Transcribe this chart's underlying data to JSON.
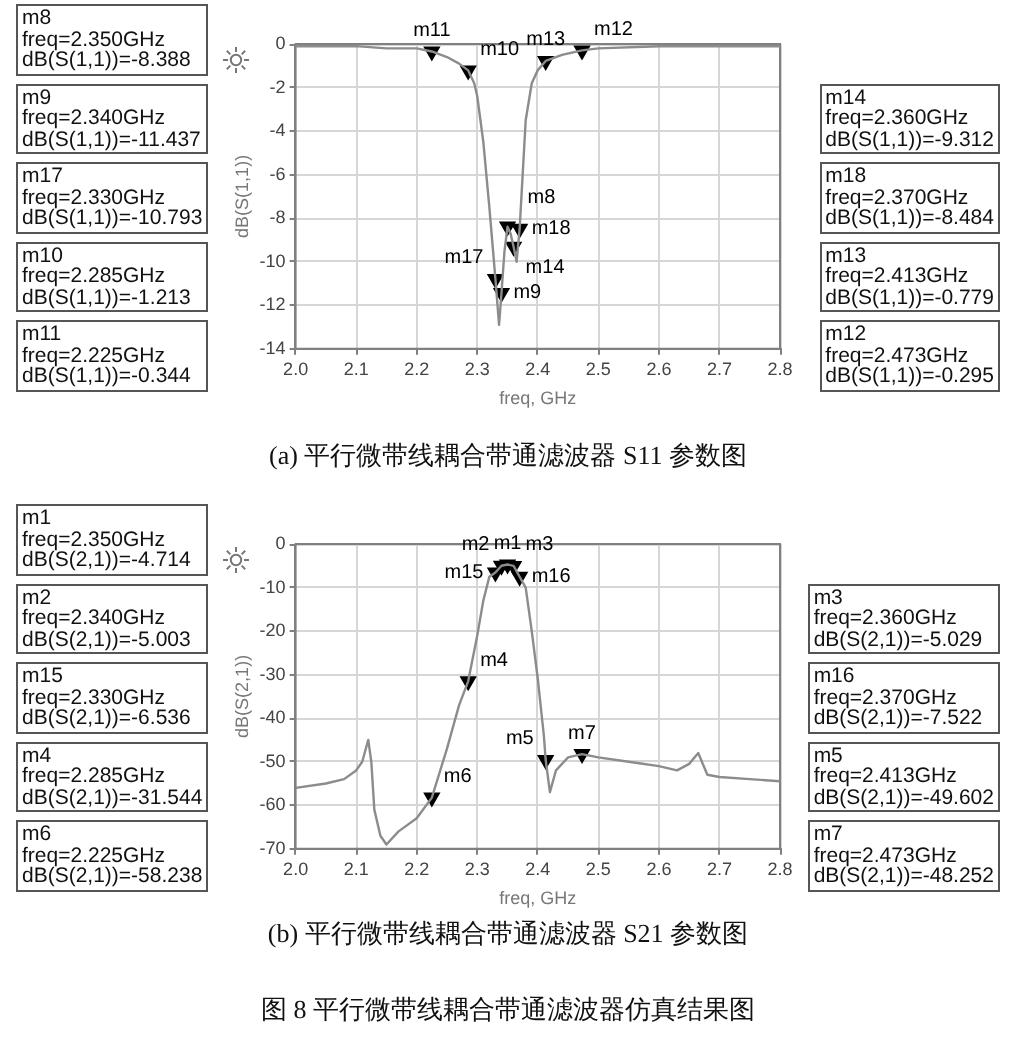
{
  "chart_data": [
    {
      "type": "line",
      "title": "(a) 平行微带线耦合带通滤波器 S11 参数图",
      "xlabel": "freq, GHz",
      "ylabel": "dB(S(1,1))",
      "xlim": [
        2.0,
        2.8
      ],
      "xticks": [
        {
          "value": 2,
          "label": "2.0"
        },
        2.1,
        2.2,
        2.3,
        2.4,
        2.5,
        2.6,
        2.7,
        2.8
      ],
      "ylim": [
        -14,
        0
      ],
      "yticks": [
        -14,
        -12,
        -10,
        -8,
        -6,
        -4,
        -2,
        0
      ],
      "grid": true,
      "annotations": [
        "m8\nfreq=2.350GHz\ndB(S(1,1))=-8.388",
        "m9\nfreq=2.340GHz\ndB(S(1,1))=-11.437",
        "m17\nfreq=2.330GHz\ndB(S(1,1))=-10.793",
        "m10\nfreq=2.285GHz\ndB(S(1,1))=-1.213",
        "m11\nfreq=2.225GHz\ndB(S(1,1))=-0.344",
        "m14\nfreq=2.360GHz\ndB(S(1,1))=-9.312",
        "m18\nfreq=2.370GHz\ndB(S(1,1))=-8.484",
        "m13\nfreq=2.413GHz\ndB(S(1,1))=-0.779",
        "m12\nfreq=2.473GHz\ndB(S(1,1))=-0.295"
      ],
      "series": [
        {
          "type": "line",
          "color": "#8c8c8c",
          "marker": "none",
          "x": [
            2.0,
            2.1,
            2.15,
            2.2,
            2.225,
            2.25,
            2.27,
            2.285,
            2.295,
            2.3,
            2.31,
            2.32,
            2.33,
            2.336,
            2.34,
            2.345,
            2.35,
            2.355,
            2.36,
            2.365,
            2.37,
            2.375,
            2.38,
            2.39,
            2.4,
            2.413,
            2.44,
            2.473,
            2.5,
            2.6,
            2.8
          ],
          "values": [
            -0.1,
            -0.1,
            -0.2,
            -0.2,
            -0.344,
            -0.6,
            -0.9,
            -1.213,
            -1.8,
            -2.4,
            -4.5,
            -7.5,
            -10.793,
            -12.9,
            -11.437,
            -9.5,
            -8.388,
            -8.7,
            -9.312,
            -10.0,
            -8.484,
            -6.0,
            -3.5,
            -1.8,
            -1.2,
            -0.779,
            -0.5,
            -0.295,
            -0.2,
            -0.1,
            -0.1
          ]
        },
        {
          "type": "scatter",
          "color": "#000000",
          "marker": "triangle",
          "x": [
            2.35,
            2.34,
            2.33,
            2.285,
            2.225,
            2.36,
            2.37,
            2.413,
            2.473
          ],
          "values": [
            -8.388,
            -11.437,
            -10.793,
            -1.213,
            -0.344,
            -9.312,
            -8.484,
            -0.779,
            -0.295
          ],
          "value_labels": [
            "m8",
            "m9",
            "m17",
            "m10",
            "m11",
            "m14",
            "m18",
            "m13",
            "m12"
          ]
        }
      ]
    },
    {
      "type": "line",
      "title": "(b) 平行微带线耦合带通滤波器 S21 参数图",
      "subtitle": "图 8 平行微带线耦合带通滤波器仿真结果图",
      "xlabel": "freq, GHz",
      "ylabel": "dB(S(2,1))",
      "xlim": [
        2.0,
        2.8
      ],
      "xticks": [
        {
          "value": 2,
          "label": "2.0"
        },
        2.1,
        2.2,
        2.3,
        2.4,
        2.5,
        2.6,
        2.7,
        2.8
      ],
      "ylim": [
        -70,
        0
      ],
      "yticks": [
        -70,
        -60,
        -50,
        -40,
        -30,
        -20,
        -10,
        0
      ],
      "grid": true,
      "annotations": [
        "m1\nfreq=2.350GHz\ndB(S(2,1))=-4.714",
        "m2\nfreq=2.340GHz\ndB(S(2,1))=-5.003",
        "m15\nfreq=2.330GHz\ndB(S(2,1))=-6.536",
        "m4\nfreq=2.285GHz\ndB(S(2,1))=-31.544",
        "m6\nfreq=2.225GHz\ndB(S(2,1))=-58.238",
        "m3\nfreq=2.360GHz\ndB(S(2,1))=-5.029",
        "m16\nfreq=2.370GHz\ndB(S(2,1))=-7.522",
        "m5\nfreq=2.413GHz\ndB(S(2,1))=-49.602",
        "m7\nfreq=2.473GHz\ndB(S(2,1))=-48.252"
      ],
      "series": [
        {
          "type": "line",
          "color": "#8c8c8c",
          "marker": "none",
          "x": [
            2.0,
            2.05,
            2.08,
            2.1,
            2.11,
            2.12,
            2.125,
            2.13,
            2.14,
            2.15,
            2.17,
            2.2,
            2.225,
            2.25,
            2.27,
            2.285,
            2.3,
            2.31,
            2.32,
            2.33,
            2.34,
            2.35,
            2.36,
            2.37,
            2.38,
            2.39,
            2.4,
            2.41,
            2.413,
            2.42,
            2.43,
            2.45,
            2.473,
            2.5,
            2.55,
            2.6,
            2.63,
            2.65,
            2.665,
            2.68,
            2.7,
            2.75,
            2.8
          ],
          "values": [
            -56,
            -55,
            -54,
            -52,
            -50,
            -45,
            -50,
            -61,
            -67,
            -69,
            -66,
            -63,
            -58.238,
            -47,
            -37,
            -31.544,
            -21,
            -13,
            -7.5,
            -6.536,
            -5.003,
            -4.714,
            -5.029,
            -7.522,
            -10,
            -20,
            -31,
            -44,
            -49.602,
            -57,
            -52,
            -49,
            -48.252,
            -49,
            -50,
            -51,
            -52,
            -50.5,
            -48,
            -53,
            -53.5,
            -54,
            -54.5
          ]
        },
        {
          "type": "scatter",
          "color": "#000000",
          "marker": "triangle",
          "x": [
            2.35,
            2.34,
            2.33,
            2.285,
            2.225,
            2.36,
            2.37,
            2.413,
            2.473
          ],
          "values": [
            -4.714,
            -5.003,
            -6.536,
            -31.544,
            -58.238,
            -5.029,
            -7.522,
            -49.602,
            -48.252
          ],
          "value_labels": [
            "m1",
            "m2",
            "m15",
            "m4",
            "m6",
            "m3",
            "m16",
            "m5",
            "m7"
          ]
        }
      ]
    }
  ]
}
